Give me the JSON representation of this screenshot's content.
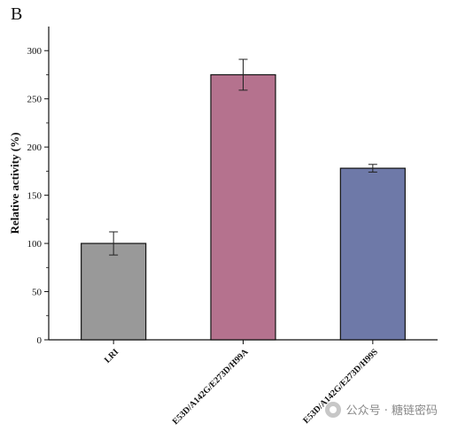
{
  "panel_label": "B",
  "watermark": "公众号 · 糖链密码",
  "chart_data": {
    "type": "bar",
    "title": "",
    "xlabel": "",
    "ylabel": "Relative activity (%)",
    "ylim": [
      0,
      325
    ],
    "yticks": [
      0,
      50,
      100,
      150,
      200,
      250,
      300
    ],
    "categories": [
      "LRI",
      "E53D/A142G/E273D/H99A",
      "E53D/A142G/E273D/H99S"
    ],
    "values": [
      100,
      275,
      178
    ],
    "errors": [
      12,
      16,
      4
    ],
    "colors": [
      "#999999",
      "#b5728e",
      "#6e79a8"
    ],
    "legend": false,
    "grid": false
  }
}
